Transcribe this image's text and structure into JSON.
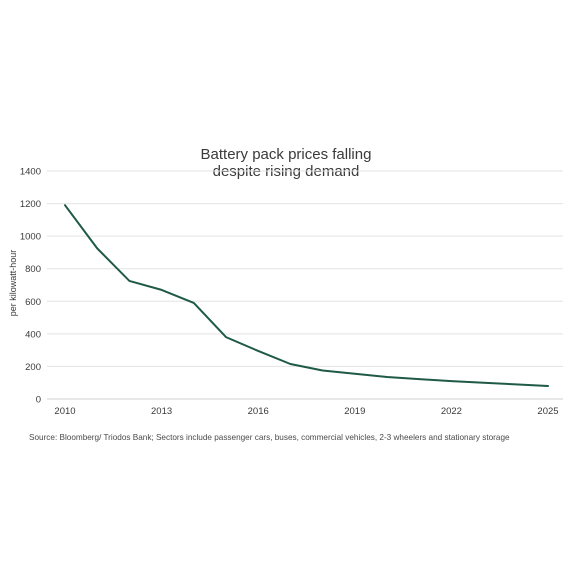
{
  "chart_data": {
    "type": "line",
    "title_lines": [
      "Battery pack prices falling",
      "despite rising demand"
    ],
    "ylabel": "per kilowatt-hour",
    "xlabel": "",
    "x": [
      2010,
      2011,
      2012,
      2013,
      2014,
      2015,
      2016,
      2017,
      2018,
      2019,
      2020,
      2021,
      2022,
      2023,
      2024,
      2025
    ],
    "series": [
      {
        "values": [
          1190,
          925,
          725,
          670,
          590,
          380,
          295,
          215,
          175,
          155,
          135,
          122,
          110,
          100,
          90,
          80
        ],
        "color": "#1f5a45"
      }
    ],
    "xticks": [
      2010,
      2013,
      2016,
      2019,
      2022,
      2025
    ],
    "yticks": [
      0,
      200,
      400,
      600,
      800,
      1000,
      1200,
      1400
    ],
    "xlim": [
      2010,
      2025
    ],
    "ylim": [
      0,
      1400
    ],
    "grid": true,
    "legend": "none",
    "source": "Source: Bloomberg/ Triodos Bank;  Sectors include passenger cars, buses, commercial vehicles,  2-3 wheelers and stationary storage"
  },
  "colors": {
    "line": "#1f5a45",
    "grid": "#e3e3e3",
    "text": "#3a3a3a"
  }
}
